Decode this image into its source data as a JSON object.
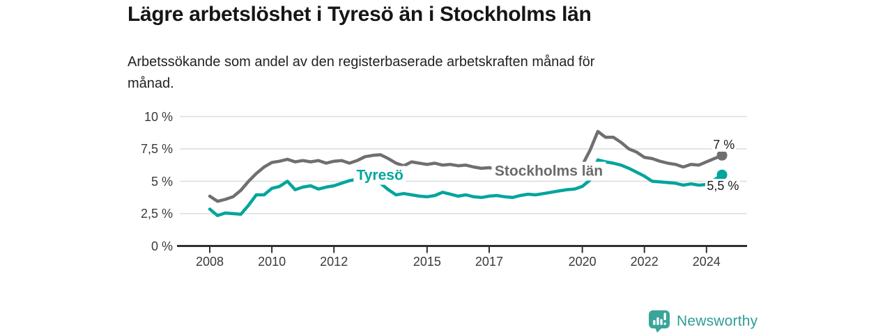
{
  "header": {
    "title": "Lägre arbetslöshet i Tyresö än i Stockholms län",
    "subtitle": "Arbetssökande som andel av den registerbaserade arbetskraften månad för månad.",
    "subtitle_lines": [
      "Arbetssökande som andel av den registerbaserade arbetskraften månad för",
      "månad."
    ]
  },
  "colors": {
    "teal": "#00a59c",
    "gray": "#6f6f6f",
    "label_gray": "#6b6b6b",
    "axis": "#2f2f2f",
    "grid": "#dcdcdc",
    "text_dark": "#1b1b1b",
    "brand_teal": "#3aa49b",
    "brand_text": "#2f9d95"
  },
  "chart_data": {
    "type": "line",
    "title": "Lägre arbetslöshet i Tyresö än i Stockholms län",
    "xlabel": "",
    "ylabel": "",
    "grid": true,
    "ylim": [
      0,
      10
    ],
    "xlim": [
      2007.0,
      2025.3
    ],
    "x": [
      2008.0,
      2008.25,
      2008.5,
      2008.75,
      2009.0,
      2009.25,
      2009.5,
      2009.75,
      2010.0,
      2010.25,
      2010.5,
      2010.75,
      2011.0,
      2011.25,
      2011.5,
      2011.75,
      2012.0,
      2012.25,
      2012.5,
      2012.75,
      2013.0,
      2013.25,
      2013.5,
      2013.75,
      2014.0,
      2014.25,
      2014.5,
      2014.75,
      2015.0,
      2015.25,
      2015.5,
      2015.75,
      2016.0,
      2016.25,
      2016.5,
      2016.75,
      2017.0,
      2017.25,
      2017.5,
      2017.75,
      2018.0,
      2018.25,
      2018.5,
      2018.75,
      2019.0,
      2019.25,
      2019.5,
      2019.75,
      2020.0,
      2020.25,
      2020.5,
      2020.75,
      2021.0,
      2021.25,
      2021.5,
      2021.75,
      2022.0,
      2022.25,
      2022.5,
      2022.75,
      2023.0,
      2023.25,
      2023.5,
      2023.75,
      2024.0,
      2024.25,
      2024.5
    ],
    "series": [
      {
        "name": "Stockholms län",
        "color_key": "gray",
        "end_label": "7 %",
        "values": [
          3.85,
          3.45,
          3.6,
          3.8,
          4.3,
          5.0,
          5.6,
          6.1,
          6.45,
          6.55,
          6.7,
          6.5,
          6.6,
          6.5,
          6.6,
          6.4,
          6.55,
          6.6,
          6.4,
          6.6,
          6.9,
          7.0,
          7.05,
          6.75,
          6.4,
          6.2,
          6.5,
          6.4,
          6.3,
          6.4,
          6.25,
          6.3,
          6.2,
          6.25,
          6.1,
          6.0,
          6.05,
          5.95,
          6.0,
          5.9,
          5.95,
          5.85,
          5.9,
          5.95,
          6.0,
          6.05,
          6.1,
          6.15,
          6.25,
          7.4,
          8.85,
          8.4,
          8.4,
          8.0,
          7.5,
          7.25,
          6.85,
          6.75,
          6.55,
          6.4,
          6.3,
          6.1,
          6.3,
          6.25,
          6.5,
          6.75,
          7.0
        ]
      },
      {
        "name": "Tyresö",
        "color_key": "teal",
        "end_label": "5,5 %",
        "values": [
          2.85,
          2.35,
          2.55,
          2.5,
          2.45,
          3.15,
          3.95,
          3.95,
          4.45,
          4.6,
          5.0,
          4.35,
          4.55,
          4.65,
          4.4,
          4.55,
          4.65,
          4.85,
          5.05,
          5.15,
          5.2,
          5.1,
          4.85,
          4.35,
          3.95,
          4.05,
          3.95,
          3.85,
          3.8,
          3.9,
          4.15,
          4.0,
          3.85,
          3.95,
          3.8,
          3.75,
          3.85,
          3.9,
          3.8,
          3.75,
          3.9,
          4.0,
          3.95,
          4.05,
          4.15,
          4.25,
          4.35,
          4.4,
          4.6,
          5.1,
          6.65,
          6.5,
          6.4,
          6.25,
          6.0,
          5.7,
          5.4,
          5.0,
          4.95,
          4.9,
          4.85,
          4.7,
          4.8,
          4.7,
          4.75,
          5.1,
          5.5
        ]
      }
    ],
    "yticks": [
      {
        "value": 0,
        "label": "0 %"
      },
      {
        "value": 2.5,
        "label": "2,5 %"
      },
      {
        "value": 5,
        "label": "5 %"
      },
      {
        "value": 7.5,
        "label": "7,5 %"
      },
      {
        "value": 10,
        "label": "10 %"
      }
    ],
    "xticks": [
      {
        "value": 2008,
        "label": "2008"
      },
      {
        "value": 2010,
        "label": "2010"
      },
      {
        "value": 2012,
        "label": "2012"
      },
      {
        "value": 2015,
        "label": "2015"
      },
      {
        "value": 2017,
        "label": "2017"
      },
      {
        "value": 2020,
        "label": "2020"
      },
      {
        "value": 2022,
        "label": "2022"
      },
      {
        "value": 2024,
        "label": "2024"
      }
    ],
    "annotations": [
      {
        "text": "Tyresö",
        "x": 2013.48,
        "y": 5.48,
        "style": "series",
        "color_key": "teal",
        "name": "series-label-tyreso"
      },
      {
        "text": "Stockholms län",
        "x": 2018.92,
        "y": 5.78,
        "style": "series",
        "color_key": "label_gray",
        "name": "series-label-stockholms-lan"
      },
      {
        "text": "7 %",
        "x": 2024.56,
        "y": 7.82,
        "style": "value",
        "name": "end-value-label-stockholms-lan"
      },
      {
        "text": "5,5 %",
        "x": 2024.53,
        "y": 4.65,
        "style": "value",
        "name": "end-value-label-tyreso"
      }
    ],
    "legend_position": "inline-labels"
  },
  "footer": {
    "brand": "Newsworthy"
  }
}
